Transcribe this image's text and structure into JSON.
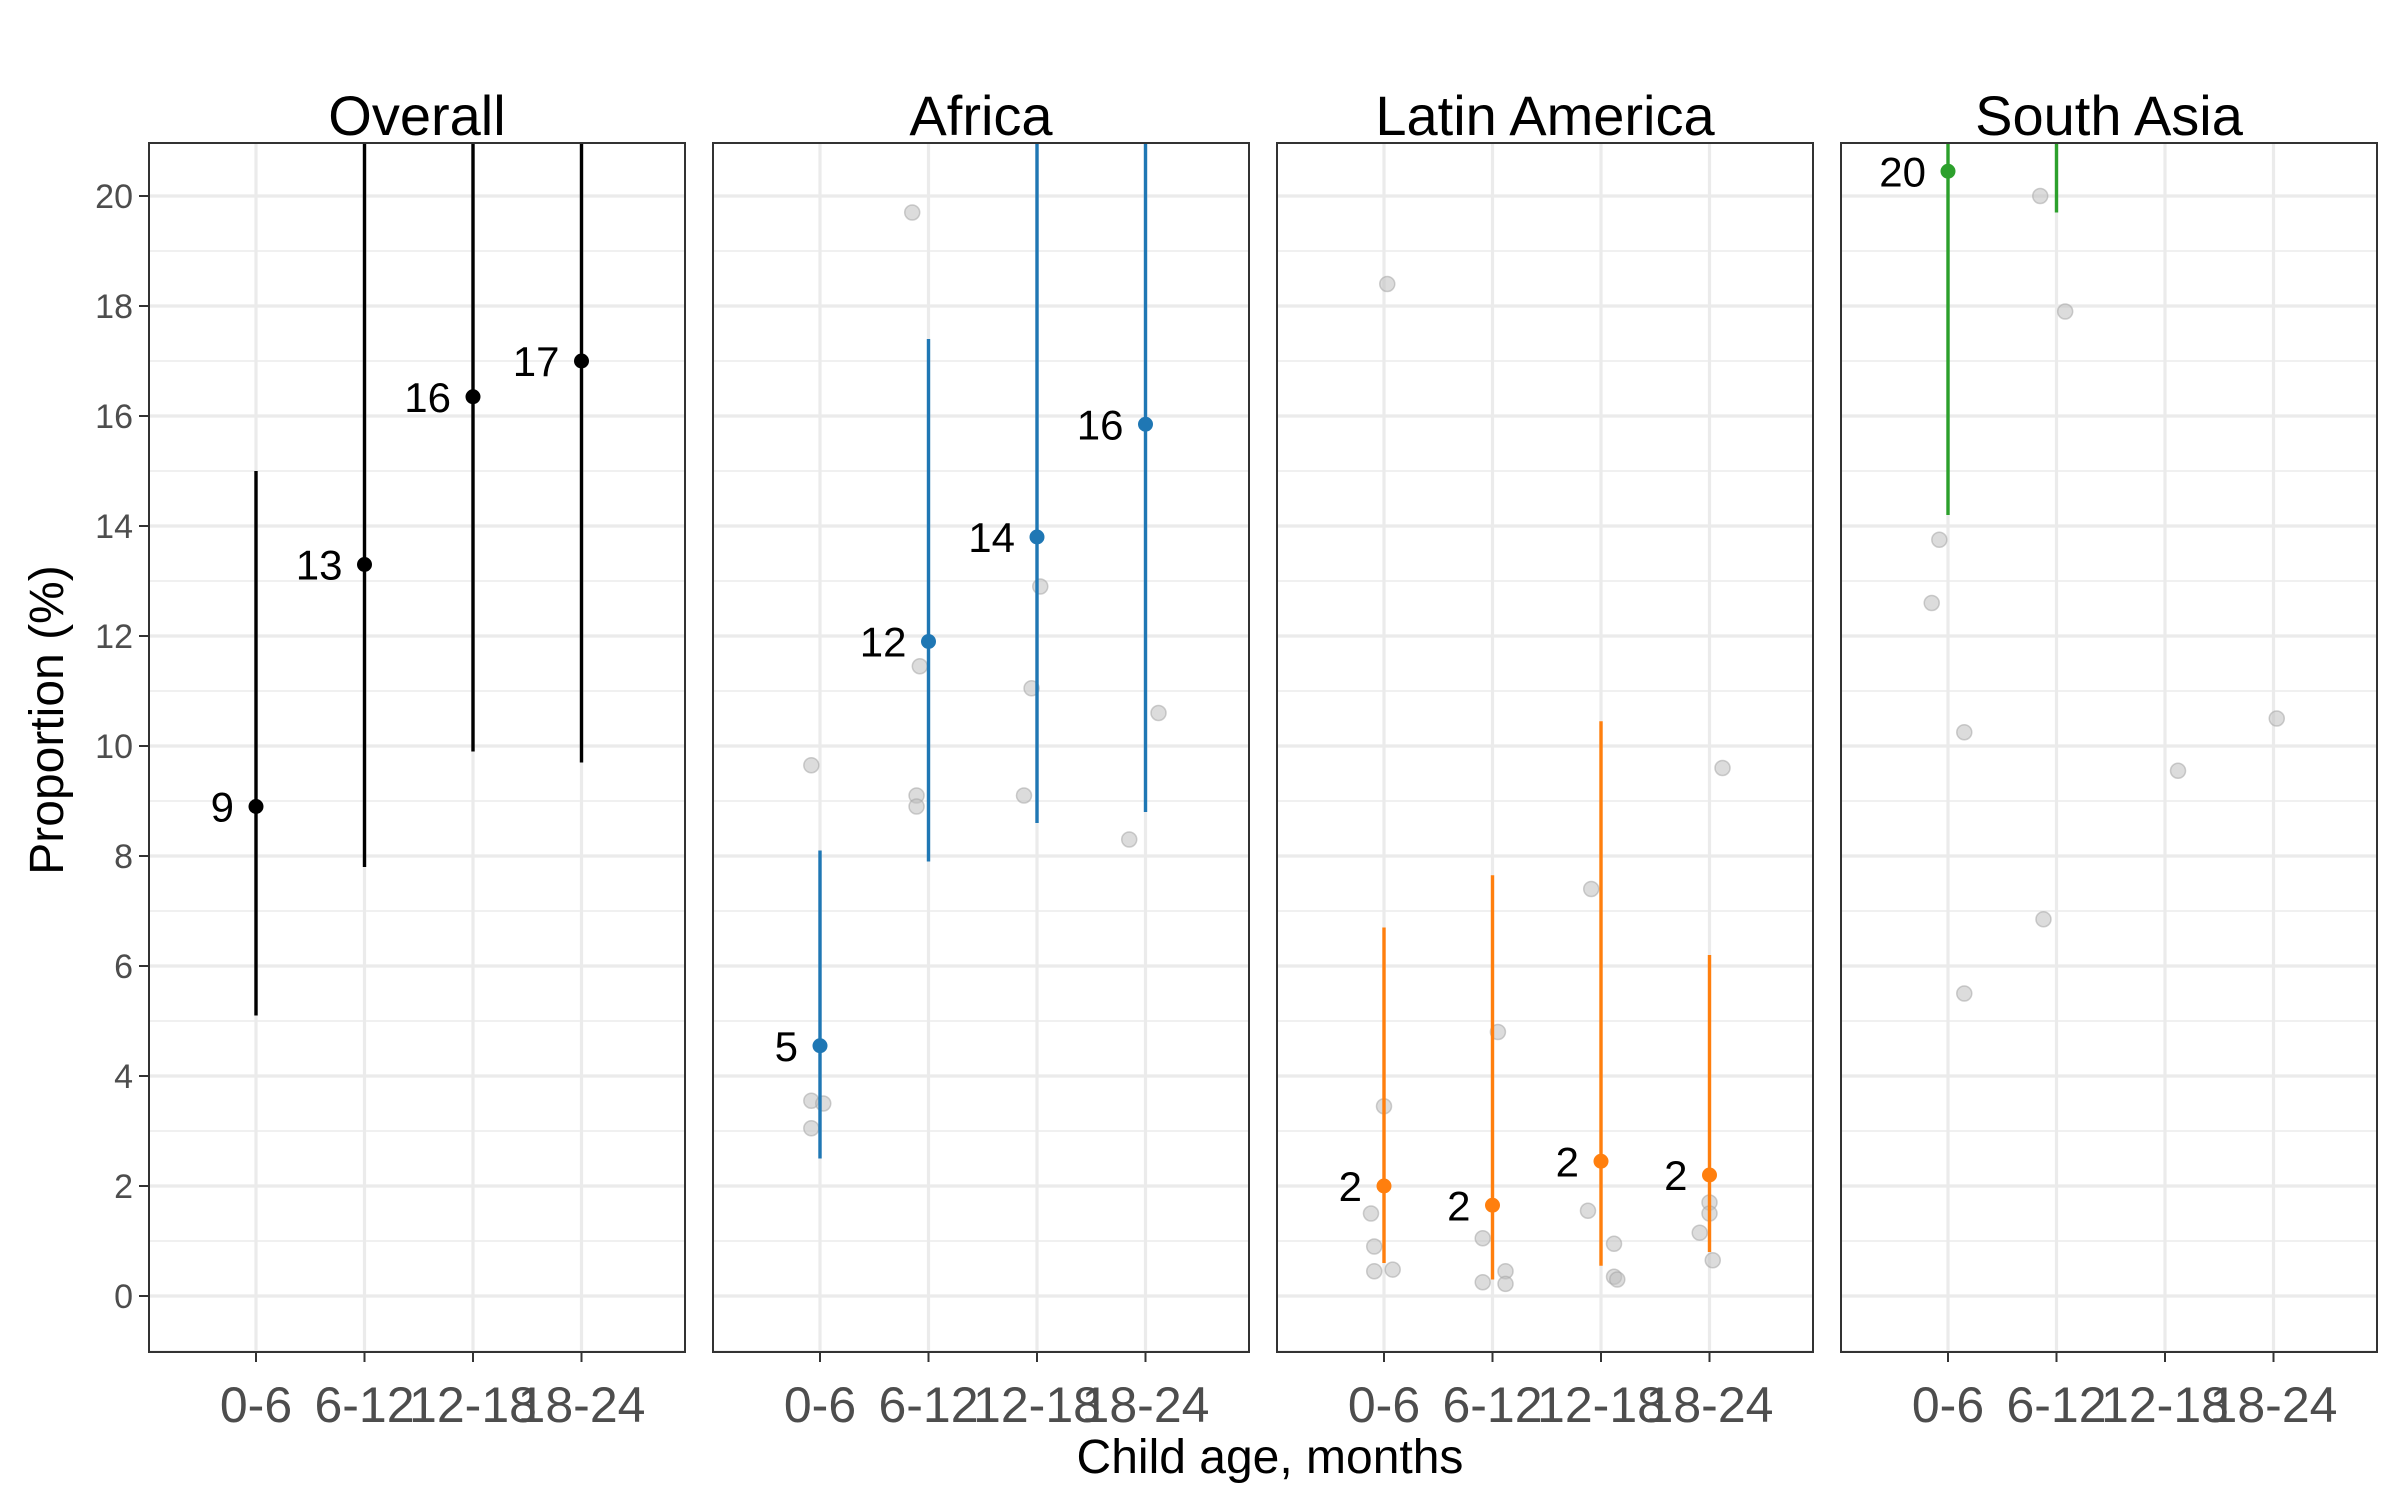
{
  "chart_data": {
    "type": "scatter",
    "xlabel": "Child age, months",
    "ylabel": "Proportion (%)",
    "ylim": [
      -1,
      21
    ],
    "y_ticks": [
      0,
      2,
      4,
      6,
      8,
      10,
      12,
      14,
      16,
      18,
      20
    ],
    "categories": [
      "0-6",
      "6-12",
      "12-18",
      "18-24"
    ],
    "grid": true,
    "colors": {
      "Overall": "#000000",
      "Africa": "#1f77b4",
      "Latin America": "#ff7f0e",
      "South Asia": "#2ca02c",
      "study_points": "#bfbfbf"
    },
    "panels": [
      {
        "title": "Overall",
        "estimates": [
          {
            "category": "0-6",
            "value": 8.9,
            "lower": 5.1,
            "upper": 15.0,
            "label": "9"
          },
          {
            "category": "6-12",
            "value": 13.3,
            "lower": 7.8,
            "upper": 21.0,
            "label": "13"
          },
          {
            "category": "12-18",
            "value": 16.35,
            "lower": 9.9,
            "upper": 21.0,
            "label": "16"
          },
          {
            "category": "18-24",
            "value": 17.0,
            "lower": 9.7,
            "upper": 21.0,
            "label": "17"
          }
        ],
        "study_points": []
      },
      {
        "title": "Africa",
        "estimates": [
          {
            "category": "0-6",
            "value": 4.55,
            "lower": 2.5,
            "upper": 8.1,
            "label": "5"
          },
          {
            "category": "6-12",
            "value": 11.9,
            "lower": 7.9,
            "upper": 17.4,
            "label": "12"
          },
          {
            "category": "12-18",
            "value": 13.8,
            "lower": 8.6,
            "upper": 21.0,
            "label": "14"
          },
          {
            "category": "18-24",
            "value": 15.85,
            "lower": 8.8,
            "upper": 21.0,
            "label": "16"
          }
        ],
        "study_points": [
          {
            "category": "0-6",
            "offset": -0.08,
            "value": 9.65
          },
          {
            "category": "0-6",
            "offset": -0.08,
            "value": 3.55
          },
          {
            "category": "0-6",
            "offset": 0.03,
            "value": 3.5
          },
          {
            "category": "0-6",
            "offset": -0.08,
            "value": 3.05
          },
          {
            "category": "6-12",
            "offset": -0.15,
            "value": 19.7
          },
          {
            "category": "6-12",
            "offset": -0.08,
            "value": 11.45
          },
          {
            "category": "6-12",
            "offset": -0.11,
            "value": 9.1
          },
          {
            "category": "6-12",
            "offset": -0.11,
            "value": 8.9
          },
          {
            "category": "12-18",
            "offset": 0.03,
            "value": 12.9
          },
          {
            "category": "12-18",
            "offset": -0.05,
            "value": 11.05
          },
          {
            "category": "12-18",
            "offset": -0.12,
            "value": 9.1
          },
          {
            "category": "18-24",
            "offset": 0.12,
            "value": 10.6
          },
          {
            "category": "18-24",
            "offset": -0.15,
            "value": 8.3
          }
        ]
      },
      {
        "title": "Latin America",
        "estimates": [
          {
            "category": "0-6",
            "value": 2.0,
            "lower": 0.6,
            "upper": 6.7,
            "label": "2"
          },
          {
            "category": "6-12",
            "value": 1.65,
            "lower": 0.3,
            "upper": 7.65,
            "label": "2"
          },
          {
            "category": "12-18",
            "value": 2.45,
            "lower": 0.55,
            "upper": 10.45,
            "label": "2"
          },
          {
            "category": "18-24",
            "value": 2.2,
            "lower": 0.8,
            "upper": 6.2,
            "label": "2"
          }
        ],
        "study_points": [
          {
            "category": "0-6",
            "offset": 0.03,
            "value": 18.4
          },
          {
            "category": "0-6",
            "offset": 0.0,
            "value": 3.45
          },
          {
            "category": "0-6",
            "offset": -0.12,
            "value": 1.5
          },
          {
            "category": "0-6",
            "offset": -0.09,
            "value": 0.9
          },
          {
            "category": "0-6",
            "offset": -0.09,
            "value": 0.45
          },
          {
            "category": "0-6",
            "offset": 0.08,
            "value": 0.48
          },
          {
            "category": "6-12",
            "offset": 0.05,
            "value": 4.8
          },
          {
            "category": "6-12",
            "offset": -0.09,
            "value": 1.05
          },
          {
            "category": "6-12",
            "offset": 0.12,
            "value": 0.45
          },
          {
            "category": "6-12",
            "offset": -0.09,
            "value": 0.25
          },
          {
            "category": "6-12",
            "offset": 0.12,
            "value": 0.22
          },
          {
            "category": "12-18",
            "offset": -0.09,
            "value": 7.4
          },
          {
            "category": "12-18",
            "offset": -0.12,
            "value": 1.55
          },
          {
            "category": "12-18",
            "offset": 0.12,
            "value": 0.95
          },
          {
            "category": "12-18",
            "offset": 0.12,
            "value": 0.35
          },
          {
            "category": "12-18",
            "offset": 0.15,
            "value": 0.3
          },
          {
            "category": "18-24",
            "offset": 0.12,
            "value": 9.6
          },
          {
            "category": "18-24",
            "offset": 0.0,
            "value": 1.7
          },
          {
            "category": "18-24",
            "offset": 0.0,
            "value": 1.5
          },
          {
            "category": "18-24",
            "offset": -0.09,
            "value": 1.15
          },
          {
            "category": "18-24",
            "offset": 0.03,
            "value": 0.65
          }
        ]
      },
      {
        "title": "South Asia",
        "estimates": [
          {
            "category": "0-6",
            "value": 20.45,
            "lower": 14.2,
            "upper": 21.0,
            "label": "20"
          },
          {
            "category": "6-12",
            "value": 21.5,
            "lower": 19.7,
            "upper": 21.0,
            "label": ""
          }
        ],
        "study_points": [
          {
            "category": "0-6",
            "offset": -0.08,
            "value": 13.75
          },
          {
            "category": "0-6",
            "offset": -0.15,
            "value": 12.6
          },
          {
            "category": "0-6",
            "offset": 0.15,
            "value": 10.25
          },
          {
            "category": "0-6",
            "offset": 0.15,
            "value": 5.5
          },
          {
            "category": "6-12",
            "offset": -0.15,
            "value": 20.0
          },
          {
            "category": "6-12",
            "offset": 0.08,
            "value": 17.9
          },
          {
            "category": "6-12",
            "offset": -0.12,
            "value": 6.85
          },
          {
            "category": "12-18",
            "offset": 0.12,
            "value": 9.55
          },
          {
            "category": "18-24",
            "offset": 0.03,
            "value": 10.5
          }
        ]
      }
    ]
  }
}
